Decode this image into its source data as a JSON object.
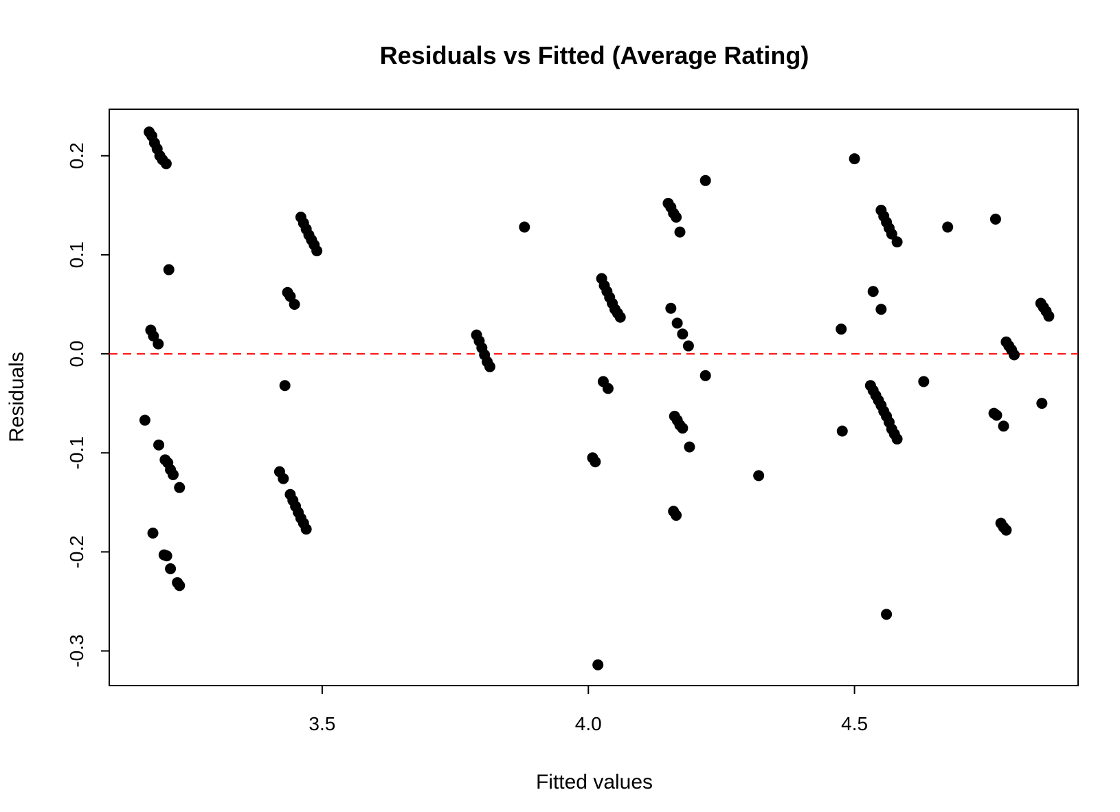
{
  "chart_data": {
    "type": "scatter",
    "title": "Residuals vs Fitted (Average Rating)",
    "xlabel": "Fitted values",
    "ylabel": "Residuals",
    "xlim": [
      3.1,
      4.92
    ],
    "ylim": [
      -0.335,
      0.247
    ],
    "x_ticks": [
      {
        "value": 3.5,
        "label": "3.5"
      },
      {
        "value": 4.0,
        "label": "4.0"
      },
      {
        "value": 4.5,
        "label": "4.5"
      }
    ],
    "y_ticks": [
      {
        "value": -0.3,
        "label": "-0.3"
      },
      {
        "value": -0.2,
        "label": "-0.2"
      },
      {
        "value": -0.1,
        "label": "-0.1"
      },
      {
        "value": 0.0,
        "label": "0.0"
      },
      {
        "value": 0.1,
        "label": "0.1"
      },
      {
        "value": 0.2,
        "label": "0.2"
      }
    ],
    "reference_line": {
      "y": 0.0,
      "color": "#ff0000",
      "style": "dashed"
    },
    "point_color": "#000000",
    "grid": false,
    "points": [
      [
        3.175,
        0.224
      ],
      [
        3.18,
        0.22
      ],
      [
        3.185,
        0.213
      ],
      [
        3.19,
        0.207
      ],
      [
        3.195,
        0.2
      ],
      [
        3.2,
        0.196
      ],
      [
        3.207,
        0.192
      ],
      [
        3.178,
        0.024
      ],
      [
        3.183,
        0.018
      ],
      [
        3.192,
        0.01
      ],
      [
        3.167,
        -0.067
      ],
      [
        3.212,
        0.085
      ],
      [
        3.193,
        -0.092
      ],
      [
        3.205,
        -0.107
      ],
      [
        3.21,
        -0.11
      ],
      [
        3.215,
        -0.117
      ],
      [
        3.22,
        -0.122
      ],
      [
        3.232,
        -0.135
      ],
      [
        3.182,
        -0.181
      ],
      [
        3.203,
        -0.203
      ],
      [
        3.208,
        -0.204
      ],
      [
        3.215,
        -0.217
      ],
      [
        3.228,
        -0.231
      ],
      [
        3.232,
        -0.234
      ],
      [
        3.46,
        0.138
      ],
      [
        3.465,
        0.132
      ],
      [
        3.47,
        0.126
      ],
      [
        3.475,
        0.12
      ],
      [
        3.48,
        0.115
      ],
      [
        3.485,
        0.11
      ],
      [
        3.49,
        0.104
      ],
      [
        3.435,
        0.062
      ],
      [
        3.44,
        0.058
      ],
      [
        3.448,
        0.05
      ],
      [
        3.43,
        -0.032
      ],
      [
        3.42,
        -0.119
      ],
      [
        3.427,
        -0.126
      ],
      [
        3.44,
        -0.142
      ],
      [
        3.445,
        -0.148
      ],
      [
        3.45,
        -0.154
      ],
      [
        3.455,
        -0.16
      ],
      [
        3.46,
        -0.166
      ],
      [
        3.465,
        -0.171
      ],
      [
        3.47,
        -0.177
      ],
      [
        3.79,
        0.019
      ],
      [
        3.795,
        0.013
      ],
      [
        3.8,
        0.006
      ],
      [
        3.805,
        -0.001
      ],
      [
        3.81,
        -0.008
      ],
      [
        3.815,
        -0.013
      ],
      [
        3.88,
        0.128
      ],
      [
        4.025,
        0.076
      ],
      [
        4.03,
        0.069
      ],
      [
        4.035,
        0.063
      ],
      [
        4.04,
        0.057
      ],
      [
        4.045,
        0.051
      ],
      [
        4.05,
        0.045
      ],
      [
        4.055,
        0.041
      ],
      [
        4.06,
        0.037
      ],
      [
        4.028,
        -0.028
      ],
      [
        4.037,
        -0.035
      ],
      [
        4.008,
        -0.105
      ],
      [
        4.013,
        -0.109
      ],
      [
        4.018,
        -0.314
      ],
      [
        4.15,
        0.152
      ],
      [
        4.155,
        0.148
      ],
      [
        4.16,
        0.142
      ],
      [
        4.165,
        0.138
      ],
      [
        4.172,
        0.123
      ],
      [
        4.155,
        0.046
      ],
      [
        4.167,
        0.031
      ],
      [
        4.177,
        0.02
      ],
      [
        4.188,
        0.008
      ],
      [
        4.162,
        -0.063
      ],
      [
        4.167,
        -0.067
      ],
      [
        4.172,
        -0.072
      ],
      [
        4.177,
        -0.075
      ],
      [
        4.19,
        -0.094
      ],
      [
        4.16,
        -0.159
      ],
      [
        4.165,
        -0.163
      ],
      [
        4.22,
        0.175
      ],
      [
        4.22,
        -0.022
      ],
      [
        4.32,
        -0.123
      ],
      [
        4.475,
        0.025
      ],
      [
        4.477,
        -0.078
      ],
      [
        4.5,
        0.197
      ],
      [
        4.535,
        0.063
      ],
      [
        4.55,
        0.045
      ],
      [
        4.55,
        0.145
      ],
      [
        4.555,
        0.139
      ],
      [
        4.56,
        0.133
      ],
      [
        4.565,
        0.127
      ],
      [
        4.57,
        0.121
      ],
      [
        4.58,
        0.113
      ],
      [
        4.53,
        -0.032
      ],
      [
        4.535,
        -0.037
      ],
      [
        4.54,
        -0.042
      ],
      [
        4.545,
        -0.047
      ],
      [
        4.55,
        -0.052
      ],
      [
        4.555,
        -0.058
      ],
      [
        4.56,
        -0.063
      ],
      [
        4.565,
        -0.069
      ],
      [
        4.57,
        -0.076
      ],
      [
        4.575,
        -0.081
      ],
      [
        4.58,
        -0.086
      ],
      [
        4.56,
        -0.263
      ],
      [
        4.63,
        -0.028
      ],
      [
        4.675,
        0.128
      ],
      [
        4.765,
        0.136
      ],
      [
        4.762,
        -0.06
      ],
      [
        4.767,
        -0.062
      ],
      [
        4.78,
        -0.073
      ],
      [
        4.775,
        -0.171
      ],
      [
        4.78,
        -0.175
      ],
      [
        4.785,
        -0.178
      ],
      [
        4.785,
        0.012
      ],
      [
        4.79,
        0.008
      ],
      [
        4.795,
        0.004
      ],
      [
        4.8,
        -0.001
      ],
      [
        4.85,
        0.051
      ],
      [
        4.855,
        0.047
      ],
      [
        4.86,
        0.043
      ],
      [
        4.865,
        0.038
      ],
      [
        4.852,
        -0.05
      ]
    ]
  }
}
